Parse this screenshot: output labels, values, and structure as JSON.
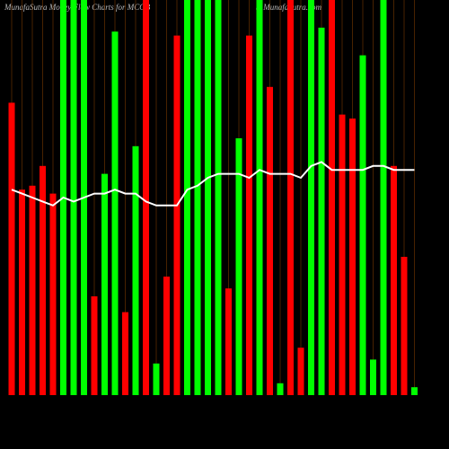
{
  "chart_data": {
    "type": "bar",
    "title": "MunafaSutra  Money Flow  Charts for MCOB",
    "subtitle": "() MunafaSutra.com",
    "ylim": [
      0,
      100
    ],
    "grid": true,
    "grid_color": "#7a3a00",
    "line_color": "#ffffff",
    "colors": [
      "#ff0000",
      "#ff0000",
      "#ff0000",
      "#ff0000",
      "#ff0000",
      "#00ff00",
      "#00ff00",
      "#00ff00",
      "#ff0000",
      "#00ff00",
      "#00ff00",
      "#ff0000",
      "#00ff00",
      "#ff0000",
      "#00ff00",
      "#ff0000",
      "#ff0000",
      "#00ff00",
      "#00ff00",
      "#00ff00",
      "#00ff00",
      "#ff0000",
      "#00ff00",
      "#ff0000",
      "#00ff00",
      "#ff0000",
      "#00ff00",
      "#ff0000",
      "#ff0000",
      "#00ff00",
      "#00ff00",
      "#ff0000",
      "#ff0000",
      "#ff0000",
      "#00ff00",
      "#00ff00",
      "#00ff00",
      "#ff0000",
      "#ff0000",
      "#00ff00"
    ],
    "values": [
      74,
      52,
      53,
      58,
      51,
      100,
      100,
      100,
      25,
      56,
      92,
      21,
      63,
      100,
      8,
      30,
      91,
      100,
      100,
      100,
      100,
      27,
      65,
      91,
      100,
      78,
      3,
      100,
      12,
      100,
      93,
      100,
      71,
      70,
      86,
      9,
      100,
      58,
      35,
      2
    ],
    "line_values": [
      52,
      51,
      50,
      49,
      48,
      50,
      49,
      50,
      51,
      51,
      52,
      51,
      51,
      49,
      48,
      48,
      48,
      52,
      53,
      55,
      56,
      56,
      56,
      55,
      57,
      56,
      56,
      56,
      55,
      58,
      59,
      57,
      57,
      57,
      57,
      58,
      58,
      57,
      57,
      57
    ]
  }
}
